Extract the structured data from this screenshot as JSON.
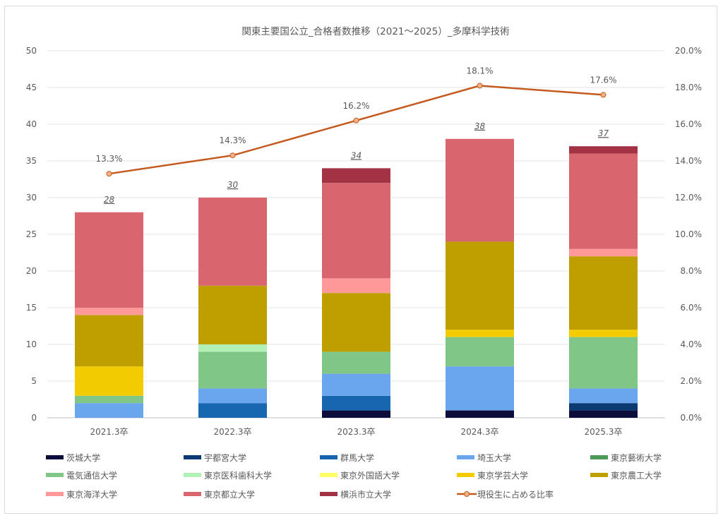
{
  "chart_data": {
    "type": "bar",
    "stacked": true,
    "title": "関東主要国公立_合格者数推移（2021～2025）_多摩科学技術",
    "categories": [
      "2021.3卒",
      "2022.3卒",
      "2023.3卒",
      "2024.3卒",
      "2025.3卒"
    ],
    "ylim": [
      0,
      50
    ],
    "y_ticks": [
      "0",
      "5",
      "10",
      "15",
      "20",
      "25",
      "30",
      "35",
      "40",
      "45",
      "50"
    ],
    "y2lim": [
      0,
      20
    ],
    "y2_ticks": [
      "0.0%",
      "2.0%",
      "4.0%",
      "6.0%",
      "8.0%",
      "10.0%",
      "12.0%",
      "14.0%",
      "16.0%",
      "18.0%",
      "20.0%"
    ],
    "grid": true,
    "legend_position": "bottom",
    "series": [
      {
        "name": "茨城大学",
        "color": "#0d0d3b",
        "values": [
          0,
          0,
          1,
          1,
          1
        ]
      },
      {
        "name": "宇都宮大学",
        "color": "#0b3a73",
        "values": [
          0,
          0,
          0,
          0,
          1
        ]
      },
      {
        "name": "群馬大学",
        "color": "#1766b0",
        "values": [
          0,
          2,
          2,
          0,
          0
        ]
      },
      {
        "name": "埼玉大学",
        "color": "#6aa6ee",
        "values": [
          2,
          2,
          3,
          6,
          2
        ]
      },
      {
        "name": "東京藝術大学",
        "color": "#4c9a57",
        "values": [
          0,
          0,
          0,
          0,
          0
        ]
      },
      {
        "name": "電気通信大学",
        "color": "#80c686",
        "values": [
          1,
          5,
          3,
          4,
          7
        ]
      },
      {
        "name": "東京医科歯科大学",
        "color": "#b3f0b6",
        "values": [
          0,
          1,
          0,
          0,
          0
        ]
      },
      {
        "name": "東京外国語大学",
        "color": "#ffff66",
        "values": [
          0,
          0,
          0,
          0,
          0
        ]
      },
      {
        "name": "東京学芸大学",
        "color": "#f2cc00",
        "values": [
          4,
          0,
          0,
          1,
          1
        ]
      },
      {
        "name": "東京農工大学",
        "color": "#bf9f00",
        "values": [
          7,
          8,
          8,
          12,
          10
        ]
      },
      {
        "name": "東京海洋大学",
        "color": "#ff9999",
        "values": [
          1,
          0,
          2,
          0,
          1
        ]
      },
      {
        "name": "東京都立大学",
        "color": "#d9656f",
        "values": [
          13,
          12,
          13,
          14,
          13
        ]
      },
      {
        "name": "横浜市立大学",
        "color": "#a33344",
        "values": [
          0,
          0,
          2,
          0,
          1
        ]
      }
    ],
    "totals": [
      "28",
      "30",
      "34",
      "38",
      "37"
    ],
    "line": {
      "name": "現役生に占める比率",
      "color": "#c55a1f",
      "values": [
        13.3,
        14.3,
        16.2,
        18.1,
        17.6
      ],
      "labels": [
        "13.3%",
        "14.3%",
        "16.2%",
        "18.1%",
        "17.6%"
      ]
    }
  }
}
